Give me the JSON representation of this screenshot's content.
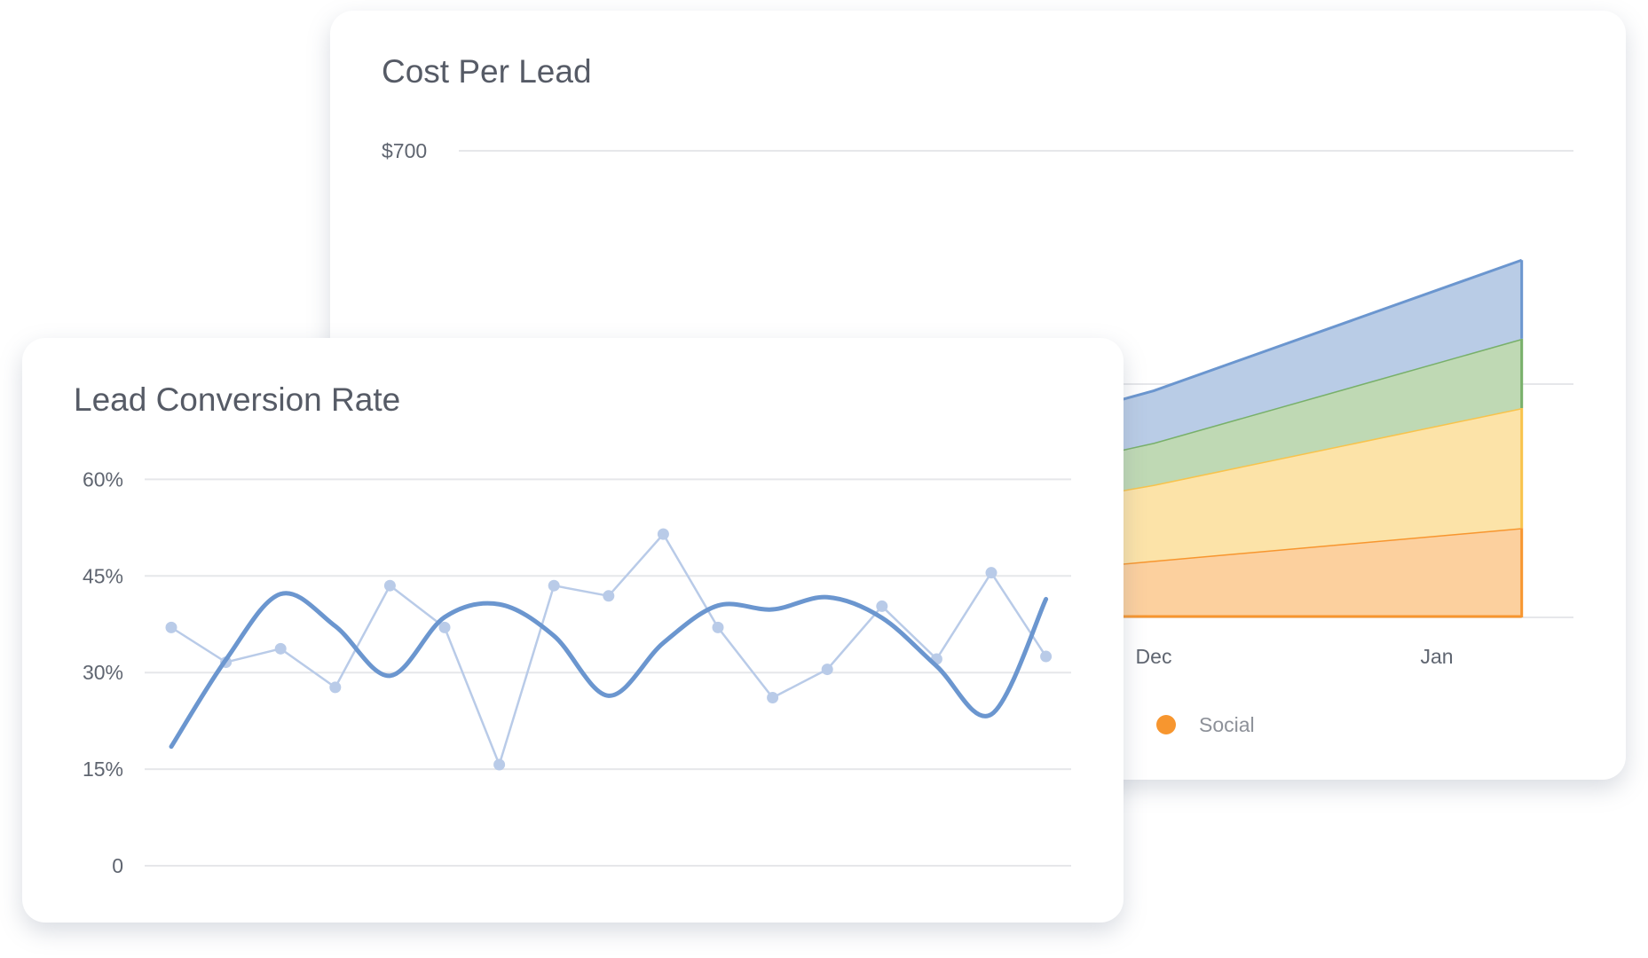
{
  "chart_data": [
    {
      "type": "area",
      "stacked": true,
      "title": "Cost Per Lead",
      "y_tick_labels": [
        "$700"
      ],
      "y_ticks": [
        0,
        350,
        700
      ],
      "ylim": [
        0,
        700
      ],
      "x_ticks": [
        {
          "x": 0,
          "label": "Dec"
        },
        {
          "x": 1,
          "label": "Jan"
        }
      ],
      "x": [
        -1,
        0,
        1.3
      ],
      "grid": true,
      "legend": {
        "placement": "bottom",
        "entries": [
          {
            "name": "Social",
            "color": "#f7962f"
          }
        ]
      },
      "series": [
        {
          "name": "Social",
          "values": [
            46,
            85,
            134
          ],
          "fill": "#fcd09e",
          "stroke": "#f7962f"
        },
        {
          "values": [
            78,
            114,
            180
          ],
          "fill": "#fce3a8",
          "stroke": "#f8c34c"
        },
        {
          "values": [
            44,
            63,
            104
          ],
          "fill": "#bfd9b4",
          "stroke": "#78b06a"
        },
        {
          "values": [
            55,
            78,
            118
          ],
          "fill": "#b9cce6",
          "stroke": "#6b96cf"
        }
      ]
    },
    {
      "type": "line",
      "title": "Lead Conversion Rate",
      "y_ticks": [
        0,
        15,
        30,
        45,
        60
      ],
      "y_tick_labels": [
        "0",
        "15%",
        "30%",
        "45%",
        "60%"
      ],
      "ylim": [
        0,
        60
      ],
      "grid": true,
      "x": [
        0,
        1,
        2,
        3,
        4,
        5,
        6,
        7,
        8,
        9,
        10,
        11,
        12,
        13,
        14,
        15,
        16
      ],
      "series": [
        {
          "style": "points",
          "color": "#b9cbe8",
          "values": [
            37.0,
            31.6,
            33.7,
            27.7,
            43.5,
            37.0,
            15.7,
            43.5,
            41.9,
            51.5,
            37.0,
            26.1,
            30.5,
            40.3,
            32.1,
            45.5,
            32.5
          ]
        },
        {
          "style": "smooth",
          "color": "#6b96cf",
          "values": [
            18.5,
            32.0,
            42.2,
            37.2,
            29.5,
            38.6,
            40.6,
            35.7,
            26.4,
            34.6,
            40.4,
            39.8,
            41.7,
            38.5,
            31.0,
            23.5,
            41.4
          ]
        }
      ]
    }
  ]
}
